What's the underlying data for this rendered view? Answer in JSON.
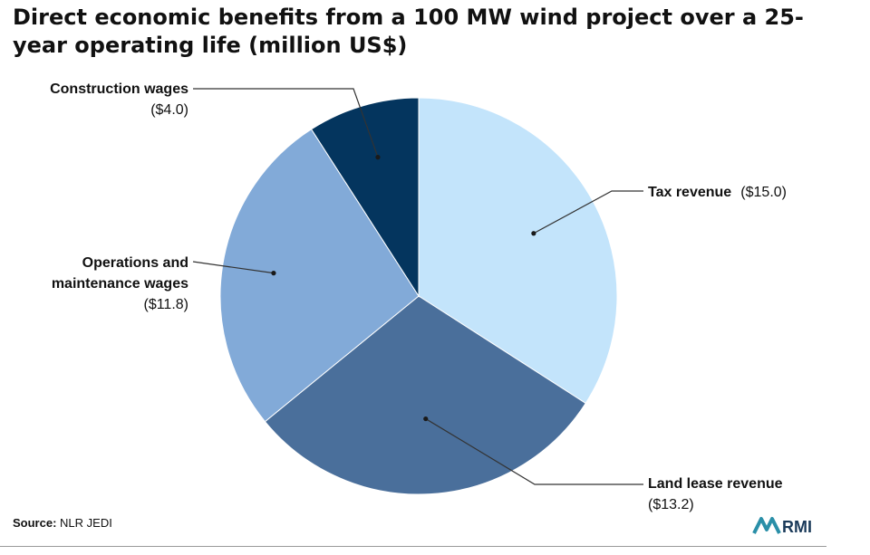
{
  "title": "Direct economic benefits from a 100 MW wind project over a 25-year operating life (million US$)",
  "source": {
    "label": "Source:",
    "text": "NLR JEDI"
  },
  "logo_text": "RMI",
  "colors": {
    "tax": "#c3e4fb",
    "land": "#4a6f9b",
    "om": "#82aad8",
    "construction": "#04355e",
    "leader": "#333333"
  },
  "chart_data": {
    "type": "pie",
    "title": "Direct economic benefits from a 100 MW wind project over a 25-year operating life (million US$)",
    "start": "12 o'clock",
    "direction": "clockwise",
    "slices": [
      {
        "label": "Tax revenue",
        "value": 15.0,
        "value_label": "($15.0)",
        "color": "#c3e4fb"
      },
      {
        "label": "Land lease revenue",
        "value": 13.2,
        "value_label": "($13.2)",
        "color": "#4a6f9b"
      },
      {
        "label": "Operations and maintenance wages",
        "label_lines": [
          "Operations and",
          "maintenance wages"
        ],
        "value": 11.8,
        "value_label": "($11.8)",
        "color": "#82aad8"
      },
      {
        "label": "Construction wages",
        "value": 4.0,
        "value_label": "($4.0)",
        "color": "#04355e"
      }
    ]
  }
}
